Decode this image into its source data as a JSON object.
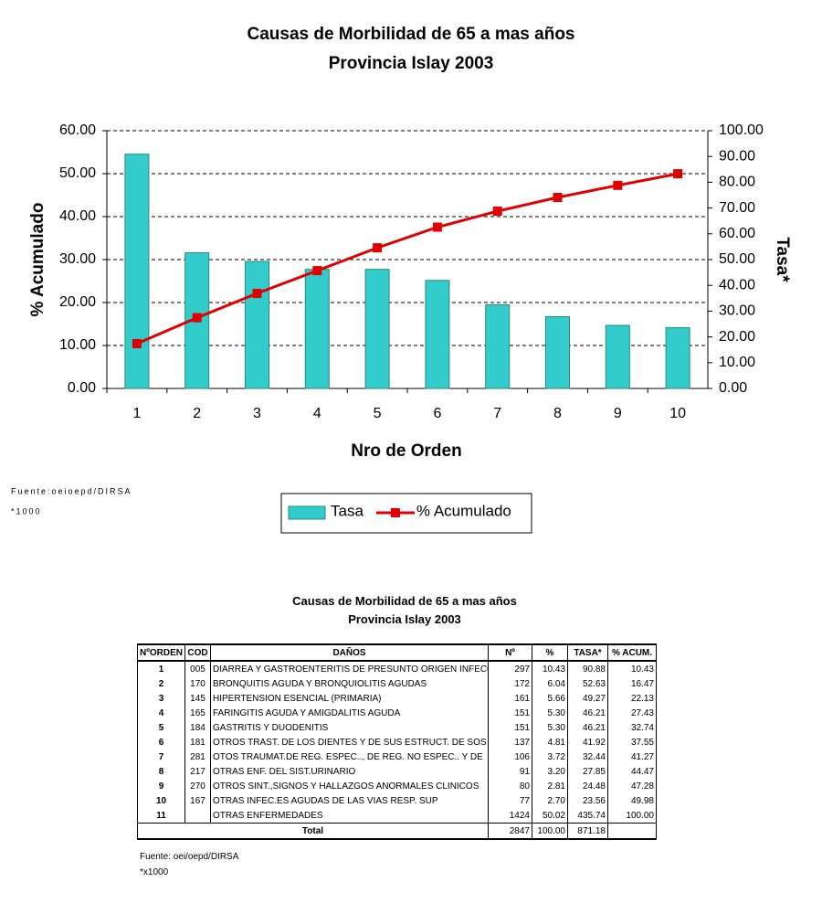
{
  "chart_data": {
    "type": "bar",
    "title": "Causas de Morbilidad de 65 a mas años",
    "subtitle": "Provincia Islay 2003",
    "x_label": "Nro de Orden",
    "y_label": "% Acumulado",
    "y2_label": "Tasa*",
    "categories": [
      "1",
      "2",
      "3",
      "4",
      "5",
      "6",
      "7",
      "8",
      "9",
      "10"
    ],
    "series": [
      {
        "name": "Tasa",
        "type": "bar",
        "axis": "y2",
        "color": "#33cccc",
        "values": [
          90.88,
          52.63,
          49.27,
          46.21,
          46.21,
          41.92,
          32.44,
          27.85,
          24.48,
          23.56
        ]
      },
      {
        "name": "% Acumulado",
        "type": "line",
        "color": "#e00000",
        "values": [
          10.43,
          16.47,
          22.13,
          27.43,
          32.74,
          37.55,
          41.27,
          44.47,
          47.28,
          49.98
        ]
      }
    ],
    "ylim": [
      0,
      60
    ],
    "yticks": [
      {
        "value": 0,
        "label": "0.00"
      },
      {
        "value": 10,
        "label": "10.00"
      },
      {
        "value": 20,
        "label": "20.00"
      },
      {
        "value": 30,
        "label": "30.00"
      },
      {
        "value": 40,
        "label": "40.00"
      },
      {
        "value": 50,
        "label": "50.00"
      },
      {
        "value": 60,
        "label": "60.00"
      }
    ],
    "y2lim": [
      0,
      100
    ],
    "y2ticks": [
      {
        "value": 0,
        "label": "0.00"
      },
      {
        "value": 10,
        "label": "10.00"
      },
      {
        "value": 20,
        "label": "20.00"
      },
      {
        "value": 30,
        "label": "30.00"
      },
      {
        "value": 40,
        "label": "40.00"
      },
      {
        "value": 50,
        "label": "50.00"
      },
      {
        "value": 60,
        "label": "60.00"
      },
      {
        "value": 70,
        "label": "70.00"
      },
      {
        "value": 80,
        "label": "80.00"
      },
      {
        "value": 90,
        "label": "90.00"
      },
      {
        "value": 100,
        "label": "100.00"
      }
    ],
    "grid": true,
    "legend": "bottom",
    "source": "Fuente:oeioepd/DIRSA",
    "note": "*1000"
  },
  "table": {
    "title": "Causas de Morbilidad de 65 a mas años",
    "subtitle": "Provincia Islay 2003",
    "header": [
      "NºORDEN",
      "COD",
      "DAÑOS",
      "Nº",
      "%",
      "TASA*",
      "% ACUM."
    ],
    "rows": [
      [
        "1",
        "005",
        "DIARREA Y GASTROENTERITIS DE PRESUNTO ORIGEN INFECC",
        "297",
        "10.43",
        "90.88",
        "10.43"
      ],
      [
        "2",
        "170",
        "BRONQUITIS AGUDA Y BRONQUIOLITIS AGUDAS",
        "172",
        "6.04",
        "52.63",
        "16.47"
      ],
      [
        "3",
        "145",
        "HIPERTENSION ESENCIAL (PRIMARIA)",
        "161",
        "5.66",
        "49.27",
        "22.13"
      ],
      [
        "4",
        "165",
        "FARINGITIS AGUDA Y AMIGDALITIS AGUDA",
        "151",
        "5.30",
        "46.21",
        "27.43"
      ],
      [
        "5",
        "184",
        "GASTRITIS Y DUODENITIS",
        "151",
        "5.30",
        "46.21",
        "32.74"
      ],
      [
        "6",
        "181",
        "OTROS TRAST. DE LOS DIENTES Y DE SUS ESTRUCT. DE SOS",
        "137",
        "4.81",
        "41.92",
        "37.55"
      ],
      [
        "7",
        "281",
        "OTOS TRAUMAT.DE REG. ESPEC.., DE REG. NO ESPEC.. Y DE",
        "106",
        "3.72",
        "32.44",
        "41.27"
      ],
      [
        "8",
        "217",
        "OTRAS ENF. DEL SIST.URINARIO",
        "91",
        "3.20",
        "27.85",
        "44.47"
      ],
      [
        "9",
        "270",
        "OTROS SINT.,SIGNOS Y HALLAZGOS ANORMALES CLINICOS",
        "80",
        "2.81",
        "24.48",
        "47.28"
      ],
      [
        "10",
        "167",
        "OTRAS INFEC.ES AGUDAS DE LAS VIAS RESP. SUP",
        "77",
        "2.70",
        "23.56",
        "49.98"
      ],
      [
        "11",
        null,
        "OTRAS ENFERMEDADES",
        "1424",
        "50.02",
        "435.74",
        "100.00"
      ]
    ],
    "total": [
      "Total",
      "2847",
      "100.00",
      "871.18"
    ],
    "source": "Fuente: oei/oepd/DIRSA",
    "note": "*x1000"
  }
}
